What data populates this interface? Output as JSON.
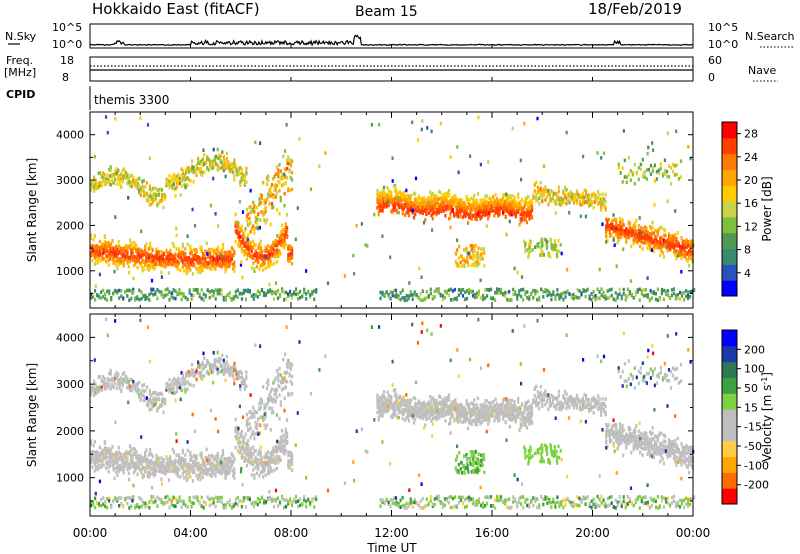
{
  "header": {
    "title": "Hokkaido East (fitACF)",
    "beam": "Beam 15",
    "date": "18/Feb/2019"
  },
  "side_labels": {
    "nsky": "N.Sky",
    "nsearch": "N.Search",
    "freq_line1": "Freq.",
    "freq_line2": "[MHz]",
    "cpid": "CPID",
    "nave": "Nave"
  },
  "small_axes": {
    "noise_ticks": [
      "10^5",
      "10^0"
    ],
    "freq_left_ticks": [
      "18",
      "8"
    ],
    "nave_right_ticks": [
      "60",
      "0"
    ],
    "cpid_text": "themis 3300"
  },
  "colors": {
    "power_scale": [
      "#0000ff",
      "#2a52be",
      "#3a8a6e",
      "#4f9a55",
      "#7fbf3f",
      "#c8d24a",
      "#ffcc00",
      "#ffa500",
      "#ff7a00",
      "#ff4000",
      "#ff0000"
    ],
    "velocity_scale": [
      "#0000ff",
      "#1a3aa8",
      "#2a7a55",
      "#3ea040",
      "#7fd13f",
      "#bfbfbf",
      "#bfbfbf",
      "#ffcc44",
      "#ffa500",
      "#ff6a00",
      "#ff0000"
    ]
  },
  "chart_data": [
    {
      "type": "heatmap",
      "name": "power",
      "xlabel": "",
      "ylabel": "Slant Range [km]",
      "x_ticks": [
        "00:00",
        "04:00",
        "08:00",
        "12:00",
        "16:00",
        "20:00",
        "00:00"
      ],
      "x_range_hours": [
        0,
        24
      ],
      "ylim": [
        180,
        4500
      ],
      "y_ticks": [
        1000,
        2000,
        3000,
        4000
      ],
      "colorbar_label": "Power [dB]",
      "colorbar_ticks": [
        4,
        8,
        12,
        16,
        20,
        24,
        28
      ],
      "colorbar_range": [
        0,
        30
      ]
    },
    {
      "type": "heatmap",
      "name": "velocity",
      "xlabel": "Time UT",
      "ylabel": "Slant Range [km]",
      "x_ticks": [
        "00:00",
        "04:00",
        "08:00",
        "12:00",
        "16:00",
        "20:00",
        "00:00"
      ],
      "x_range_hours": [
        0,
        24
      ],
      "ylim": [
        180,
        4500
      ],
      "y_ticks": [
        1000,
        2000,
        3000,
        4000
      ],
      "colorbar_label": "Velocity [m s^-1]",
      "colorbar_ticks": [
        "200",
        "100",
        "50",
        "15",
        "-15",
        "-50",
        "-100",
        "-200"
      ]
    }
  ]
}
